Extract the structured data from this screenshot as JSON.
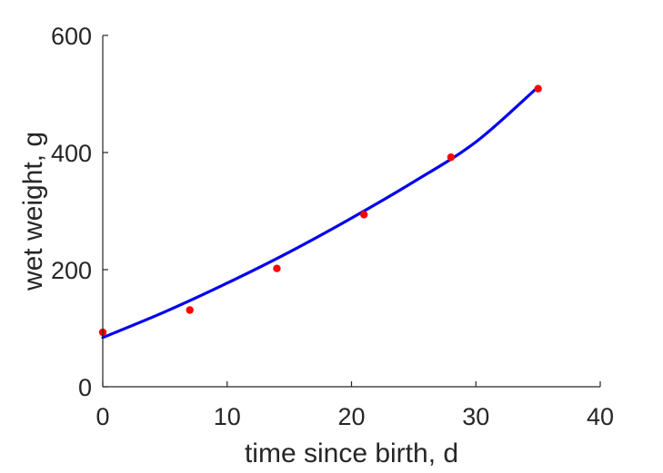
{
  "chart_data": {
    "type": "scatter",
    "title": "",
    "xlabel": "time since birth, d",
    "ylabel": "wet weight, g",
    "xlim": [
      0,
      40
    ],
    "ylim": [
      0,
      600
    ],
    "xticks": [
      0,
      10,
      20,
      30,
      40
    ],
    "yticks": [
      0,
      200,
      400,
      600
    ],
    "xtick_labels": [
      "0",
      "10",
      "20",
      "30",
      "40"
    ],
    "ytick_labels": [
      "0",
      "200",
      "400",
      "600"
    ],
    "grid": false,
    "legend": "none",
    "series": [
      {
        "type": "scatter",
        "color": "#ff0000",
        "x": [
          0,
          7,
          14,
          21,
          28,
          35
        ],
        "y": [
          93,
          131,
          202,
          294,
          392,
          509
        ]
      },
      {
        "type": "line",
        "color": "#0000ee",
        "x": [
          0,
          5,
          10,
          15,
          20,
          25,
          30,
          35
        ],
        "y": [
          84,
          128,
          177,
          230,
          288,
          350,
          418,
          512
        ]
      }
    ]
  }
}
